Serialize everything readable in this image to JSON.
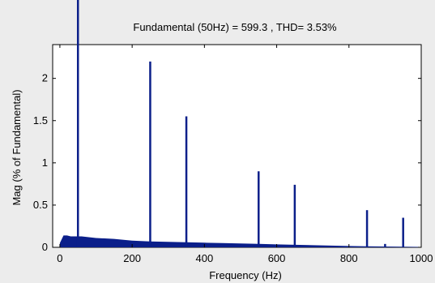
{
  "chart_data": {
    "type": "bar",
    "title": "Fundamental (50Hz) = 599.3 , THD= 3.53%",
    "xlabel": "Frequency (Hz)",
    "ylabel": "Mag (% of Fundamental)",
    "xlim": [
      -20,
      1000
    ],
    "ylim": [
      0,
      2.4
    ],
    "xticks": [
      0,
      200,
      400,
      600,
      800,
      1000
    ],
    "yticks": [
      0,
      0.5,
      1,
      1.5,
      2
    ],
    "grid": false,
    "legend": "none",
    "colors": {
      "bars": "#0b1f8a",
      "plot_bg": "#ffffff",
      "figure_bg": "#ececec"
    },
    "fundamental": {
      "x": 50,
      "y": 100
    },
    "harmonics": [
      {
        "x": 250,
        "y": 2.2
      },
      {
        "x": 350,
        "y": 1.55
      },
      {
        "x": 550,
        "y": 0.9
      },
      {
        "x": 650,
        "y": 0.74
      },
      {
        "x": 850,
        "y": 0.44
      },
      {
        "x": 950,
        "y": 0.35
      },
      {
        "x": 900,
        "y": 0.04
      }
    ],
    "floor": {
      "x": [
        0,
        10,
        20,
        30,
        40,
        50,
        60,
        80,
        100,
        150,
        200,
        250,
        300,
        350,
        400,
        450,
        500,
        550,
        600,
        650,
        700,
        750,
        800,
        850,
        900,
        950,
        1000
      ],
      "y": [
        0.05,
        0.14,
        0.14,
        0.13,
        0.13,
        0.13,
        0.13,
        0.12,
        0.11,
        0.1,
        0.08,
        0.07,
        0.065,
        0.06,
        0.055,
        0.05,
        0.045,
        0.04,
        0.035,
        0.03,
        0.025,
        0.02,
        0.015,
        0.012,
        0.01,
        0.008,
        0.005
      ]
    }
  }
}
